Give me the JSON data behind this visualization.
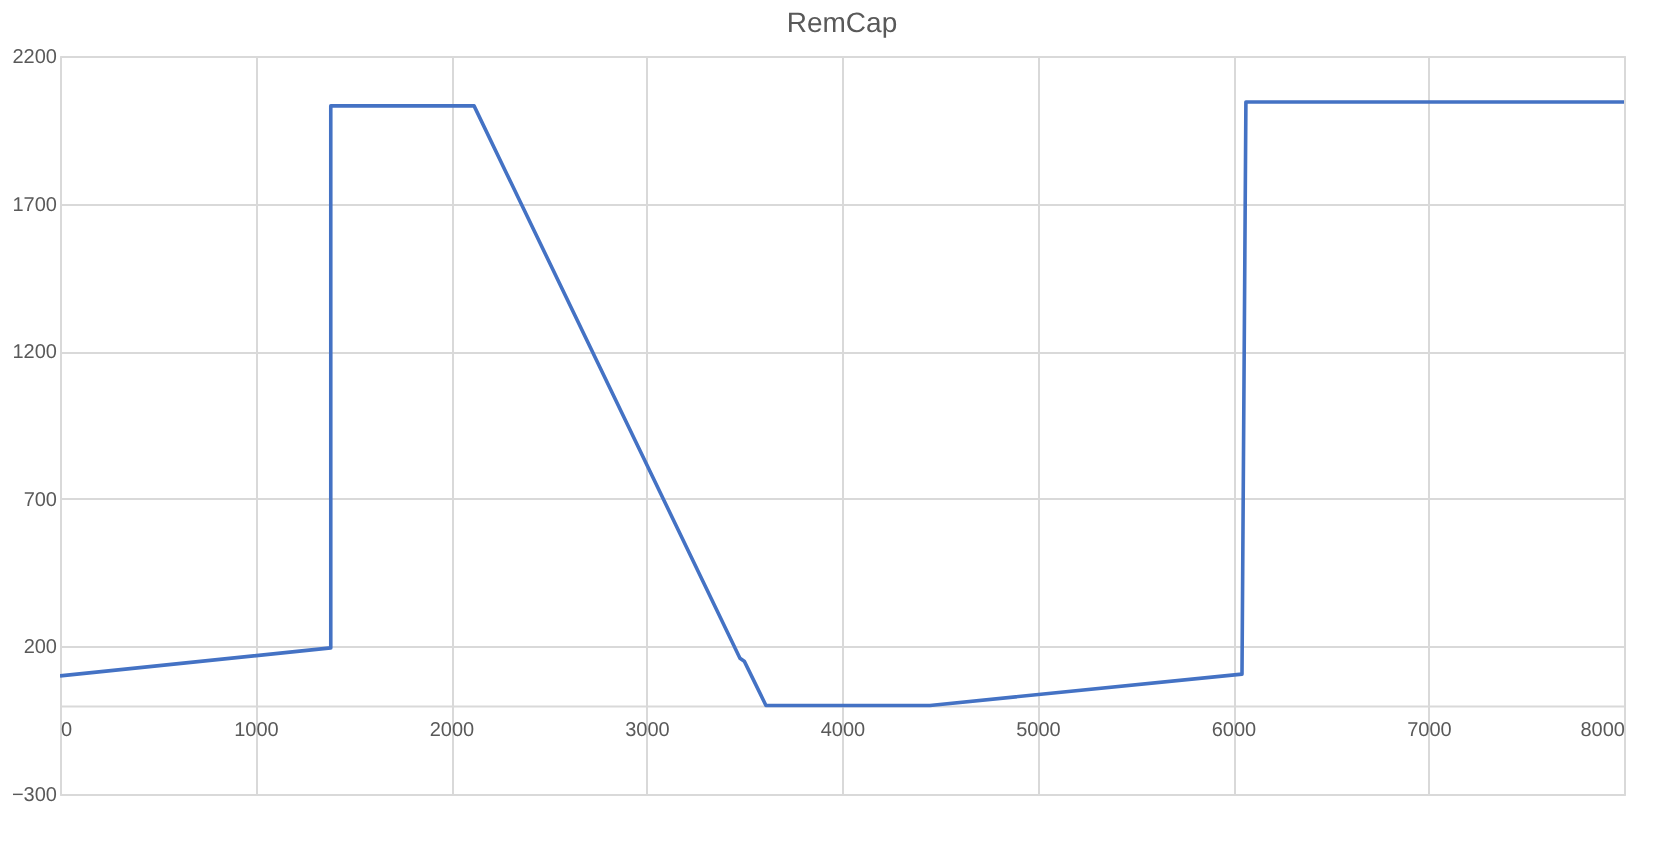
{
  "chart_data": {
    "type": "line",
    "title": "RemCap",
    "series": [
      {
        "color": "#4472c4",
        "x": [
          0,
          1385,
          1385,
          2118,
          3478,
          3500,
          3611,
          4450,
          6046,
          6066,
          8000
        ],
        "values": [
          100,
          195,
          2031,
          2031,
          160,
          150,
          0,
          0,
          106,
          2044,
          2044
        ]
      }
    ],
    "xlim": [
      0,
      8000
    ],
    "xticks": [
      0,
      1000,
      2000,
      3000,
      4000,
      5000,
      6000,
      7000,
      8000
    ],
    "ylim": [
      -300,
      2200
    ],
    "yticks": [
      -300,
      200,
      700,
      1200,
      1700,
      2200
    ],
    "grid": true,
    "marker": "none",
    "line_style": "solid"
  }
}
